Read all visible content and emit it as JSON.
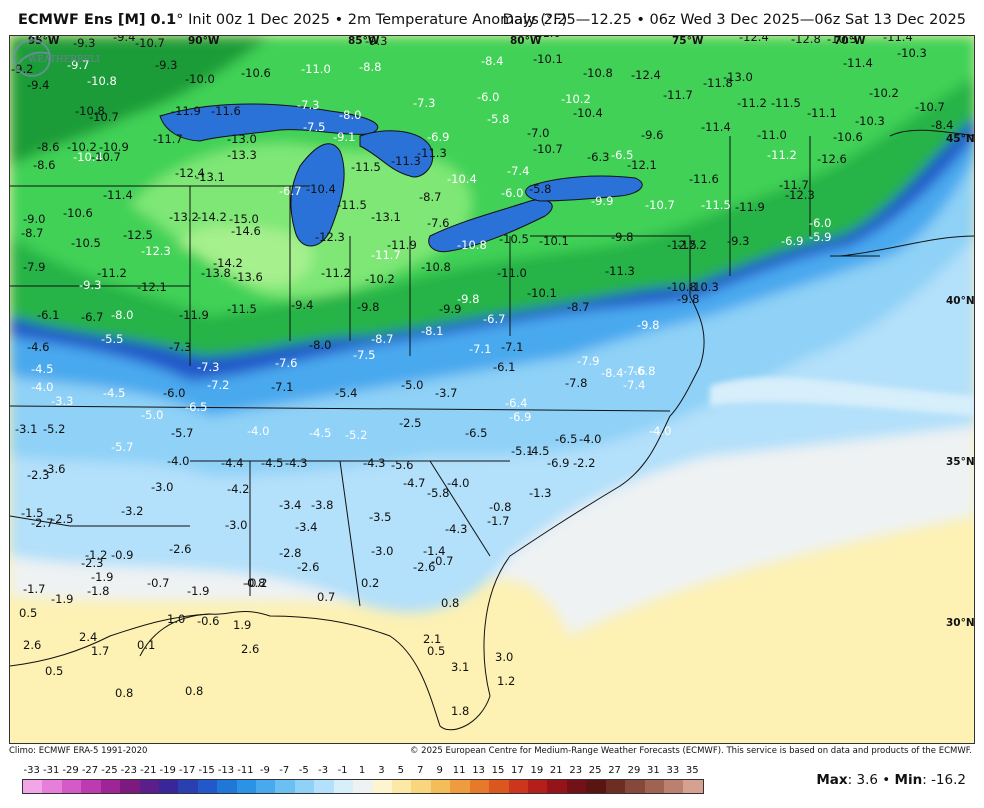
{
  "header": {
    "model": "ECMWF Ens [M] 0.1",
    "degree": "°",
    "init": "Init 00z 1 Dec 2025",
    "bullet": "•",
    "product": "2m Temperature Anomaly (°F)",
    "valid": "Days 2.25—12.25 • 06z Wed 3 Dec 2025—06z Sat 13 Dec 2025"
  },
  "grid_labels": {
    "lon": [
      "95°W",
      "90°W",
      "85°W",
      "80°W",
      "75°W",
      "70°W"
    ],
    "lat": [
      "45°N",
      "40°N",
      "35°N",
      "30°N"
    ]
  },
  "anomaly_labels": [
    "-8.4",
    "-9.3",
    "-9.4",
    "-10.7",
    "-8.2",
    "-9.3",
    "-11.0",
    "-12.4",
    "-12.8",
    "-10.3",
    "-11.4",
    "-10.3",
    "-9.2",
    "-9.7",
    "-9.3",
    "-10.0",
    "-10.6",
    "-11.0",
    "-8.8",
    "-8.4",
    "-10.1",
    "-10.8",
    "-12.4",
    "-13.0",
    "-11.4",
    "-9.4",
    "-10.8",
    "-7.3",
    "-8.0",
    "-7.3",
    "-6.0",
    "-10.2",
    "-11.8",
    "-11.7",
    "-11.2",
    "-11.5",
    "-10.2",
    "-10.7",
    "-10.8",
    "-10.7",
    "-11.9",
    "-11.6",
    "-7.5",
    "-9.1",
    "-6.9",
    "-5.8",
    "-10.4",
    "-11.4",
    "-11.0",
    "-11.1",
    "-10.3",
    "-8.4",
    "-8.6",
    "-10.2",
    "-10.9",
    "-11.7",
    "-13.0",
    "-11.3",
    "-7.0",
    "-9.6",
    "-10.6",
    "-8.6",
    "-10.4",
    "-10.7",
    "-13.3",
    "-11.5",
    "-11.3",
    "-10.7",
    "-6.3",
    "-6.5",
    "-11.2",
    "-12.6",
    "-11.4",
    "-12.4",
    "-13.1",
    "-6.7",
    "-10.4",
    "-8.7",
    "-10.4",
    "-7.4",
    "-12.1",
    "-11.6",
    "-11.7",
    "-10.6",
    "-13.2",
    "-14.2",
    "-15.0",
    "-11.5",
    "-13.1",
    "-7.6",
    "-5.8",
    "-6.0",
    "-9.9",
    "-10.7",
    "-11.5",
    "-11.9",
    "-12.3",
    "-9.0",
    "-8.7",
    "-10.5",
    "-12.5",
    "-14.6",
    "-12.3",
    "-11.9",
    "-10.8",
    "-10.5",
    "-10.1",
    "-9.8",
    "-9.3",
    "-6.9",
    "-6.0",
    "-5.9",
    "-12.3",
    "-11.7",
    "-12.5",
    "-12.2",
    "-7.9",
    "-11.2",
    "-14.2",
    "-13.8",
    "-13.6",
    "-11.2",
    "-10.2",
    "-10.8",
    "-11.0",
    "-11.3",
    "-9.3",
    "-12.1",
    "-10.1",
    "-10.8",
    "-10.3",
    "-9.8",
    "-6.1",
    "-6.7",
    "-8.0",
    "-11.9",
    "-11.5",
    "-9.4",
    "-9.8",
    "-9.9",
    "-9.8",
    "-8.7",
    "-9.8",
    "-5.5",
    "-8.7",
    "-8.1",
    "-6.7",
    "-7.1",
    "-4.6",
    "-7.3",
    "-8.0",
    "-7.5",
    "-7.1",
    "-4.5",
    "-7.3",
    "-7.6",
    "-6.1",
    "-7.9",
    "-8.4",
    "-7.6",
    "-6.8",
    "-4.0",
    "-4.5",
    "-6.0",
    "-7.2",
    "-7.1",
    "-5.4",
    "-5.0",
    "-3.7",
    "-7.8",
    "-7.4",
    "-3.3",
    "-5.0",
    "-6.5",
    "-6.4",
    "-6.9",
    "-2.5",
    "-3.2",
    "-3.1",
    "-5.2",
    "-5.7",
    "-5.1",
    "-4.0",
    "-4.5",
    "-5.2",
    "-6.5",
    "-6.5",
    "-4.0",
    "-4.0",
    "-5.7",
    "-4.5",
    "-4.0",
    "-4.4",
    "-4.5",
    "-4.3",
    "-4.3",
    "-5.6",
    "-6.9",
    "-2.2",
    "-2.3",
    "-3.6",
    "-3.0",
    "-4.2",
    "-4.7",
    "-4.0",
    "-5.8",
    "-1.3",
    "-1.5",
    "-2.5",
    "-3.2",
    "-3.4",
    "-3.8",
    "-0.8",
    "-2.7",
    "-3.0",
    "-3.4",
    "-3.5",
    "-4.3",
    "-1.7",
    "-2.6",
    "-2.8",
    "-3.0",
    "-1.4",
    "-1.2",
    "-0.9",
    "-2.3",
    "-2.6",
    "-2.6",
    "-0.7",
    "-0.7",
    "-1.9",
    "-1.8",
    "-0.8",
    "0.2",
    "0.4",
    "-1.7",
    "-1.9",
    "-1.9",
    "-0.2",
    "0.7",
    "0.8",
    "0.5",
    "1.0",
    "-0.6",
    "1.9",
    "2.1",
    "2.6",
    "2.4",
    "1.7",
    "0.1",
    "2.6",
    "0.5",
    "0.5",
    "3.1",
    "3.0",
    "0.8",
    "0.8",
    "1.2",
    "1.8"
  ],
  "footer": {
    "climo": "Climo: ECMWF ERA-5 1991-2020",
    "copyright": "© 2025 European Centre for Medium-Range Weather Forecasts (ECMWF). This service is based on data and products of the ECMWF."
  },
  "colorbar": {
    "ticks": [
      "-33",
      "-31",
      "-29",
      "-27",
      "-25",
      "-23",
      "-21",
      "-19",
      "-17",
      "-15",
      "-13",
      "-11",
      "-9",
      "-7",
      "-5",
      "-3",
      "-1",
      "1",
      "3",
      "5",
      "7",
      "9",
      "11",
      "13",
      "15",
      "17",
      "19",
      "21",
      "23",
      "25",
      "27",
      "29",
      "31",
      "33",
      "35"
    ],
    "colors": [
      "#f2a6e8",
      "#e57fd9",
      "#d35ac7",
      "#bd3ab2",
      "#9f2597",
      "#7d1a80",
      "#5b1f8c",
      "#3a2699",
      "#2a3fb0",
      "#2258c9",
      "#1f77d8",
      "#2b93e6",
      "#49a9ee",
      "#6cbff3",
      "#8fd1f7",
      "#b3e0fa",
      "#d7eefb",
      "#eef2f3",
      "#fdf5cf",
      "#fce9a6",
      "#f8d67d",
      "#f3bd59",
      "#ee9c3d",
      "#e7792b",
      "#dc5620",
      "#cc361c",
      "#b41f1c",
      "#94141a",
      "#741017",
      "#5a1512",
      "#6e2d22",
      "#86483a",
      "#a06352",
      "#bb8070",
      "#d6a092"
    ]
  },
  "stats": {
    "max_label": "Max",
    "max": "3.6",
    "sep": "•",
    "min_label": "Min",
    "min": "-16.2"
  },
  "logo_text": "WEATHERBELL"
}
